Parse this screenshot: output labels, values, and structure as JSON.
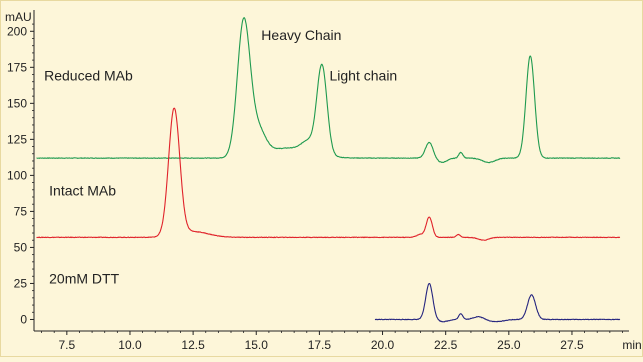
{
  "chart_data": {
    "type": "line",
    "title": "",
    "ylabel": "mAU",
    "xlabel": "min",
    "xlim": [
      6.2,
      29.6
    ],
    "ylim": [
      -8,
      212
    ],
    "x_ticks": [
      7.5,
      10.0,
      12.5,
      15.0,
      17.5,
      20.0,
      22.5,
      25.0,
      27.5
    ],
    "x_tick_labels": [
      "7.5",
      "10.0",
      "12.5",
      "15.0",
      "17.5",
      "20.0",
      "22.5",
      "25.0",
      "27.5"
    ],
    "y_ticks": [
      0,
      25,
      50,
      75,
      100,
      125,
      150,
      175,
      200
    ],
    "y_tick_labels": [
      "0",
      "25",
      "50",
      "75",
      "100",
      "125",
      "150",
      "175",
      "200"
    ],
    "grid": false,
    "annotations": [
      {
        "text": "Reduced MAb",
        "x": 6.6,
        "y": 166
      },
      {
        "text": "Heavy Chain",
        "x": 15.2,
        "y": 194
      },
      {
        "text": "Light chain",
        "x": 17.9,
        "y": 166
      },
      {
        "text": "Intact MAb",
        "x": 6.8,
        "y": 86
      },
      {
        "text": "20mM DTT",
        "x": 6.8,
        "y": 25
      }
    ],
    "series": [
      {
        "color": "#1f9a4f",
        "baseline": 112,
        "x_range": [
          6.3,
          29.4
        ],
        "peaks": [
          {
            "x": 14.5,
            "height": 93,
            "width": 0.25
          },
          {
            "x": 15.05,
            "height": 18,
            "width": 0.3
          },
          {
            "x": 16.3,
            "height": 7,
            "width": 0.9
          },
          {
            "x": 17.05,
            "height": 7,
            "width": 0.25
          },
          {
            "x": 17.6,
            "height": 62,
            "width": 0.2
          },
          {
            "x": 21.85,
            "height": 11,
            "width": 0.15
          },
          {
            "x": 23.1,
            "height": 4,
            "width": 0.08
          },
          {
            "x": 25.85,
            "height": 71,
            "width": 0.17
          }
        ],
        "dips": [
          {
            "x": 22.35,
            "depth": 3,
            "width": 0.2
          },
          {
            "x": 24.2,
            "depth": 3,
            "width": 0.25
          }
        ]
      },
      {
        "color": "#e0222a",
        "baseline": 57,
        "x_range": [
          6.3,
          29.4
        ],
        "peaks": [
          {
            "x": 11.75,
            "height": 88,
            "width": 0.22
          },
          {
            "x": 12.5,
            "height": 4,
            "width": 0.6
          },
          {
            "x": 21.85,
            "height": 14,
            "width": 0.12
          },
          {
            "x": 21.5,
            "height": 2,
            "width": 0.15
          },
          {
            "x": 23.0,
            "height": 2,
            "width": 0.08
          }
        ],
        "dips": [
          {
            "x": 24.0,
            "depth": 2,
            "width": 0.2
          }
        ]
      },
      {
        "color": "#25257f",
        "baseline": 0,
        "x_range": [
          19.7,
          29.4
        ],
        "peaks": [
          {
            "x": 21.85,
            "height": 25,
            "width": 0.14
          },
          {
            "x": 23.1,
            "height": 4,
            "width": 0.08
          },
          {
            "x": 23.8,
            "height": 2,
            "width": 0.2
          },
          {
            "x": 25.9,
            "height": 17,
            "width": 0.16
          }
        ],
        "dips": [
          {
            "x": 22.4,
            "depth": 1.5,
            "width": 0.2
          },
          {
            "x": 24.5,
            "depth": 1.5,
            "width": 0.3
          }
        ]
      }
    ]
  }
}
